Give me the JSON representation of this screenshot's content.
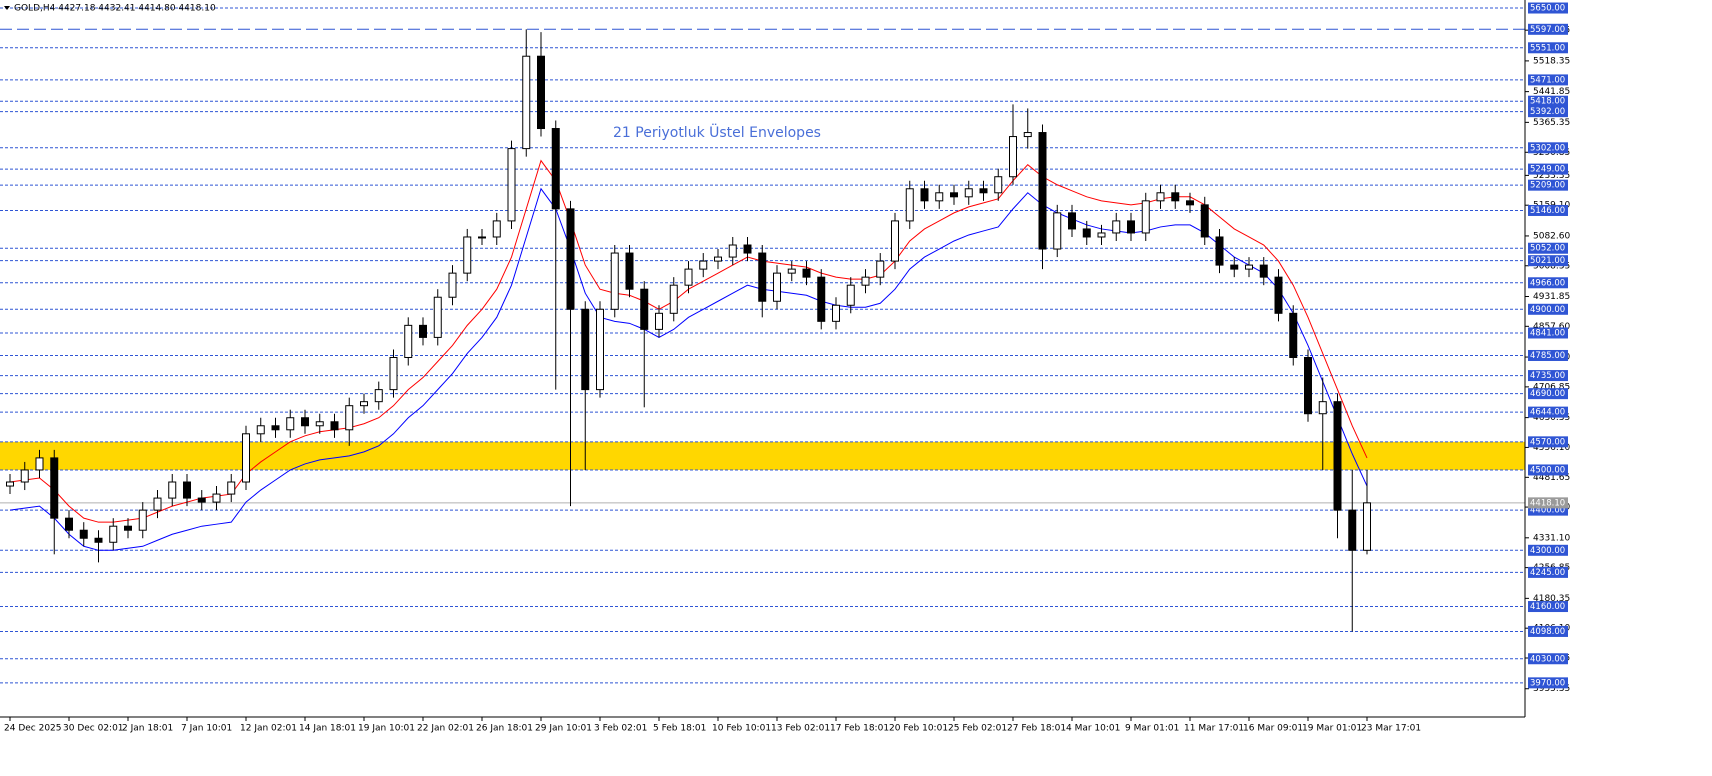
{
  "chart_data": {
    "type": "candlestick",
    "title": "GOLD,H4  4427.18 4432.41 4414.80 4418.10",
    "annotation": "21 Periyotluk Üstel Envelopes",
    "ylim": [
      3885,
      5660
    ],
    "categories": [
      "24 Dec 2025",
      null,
      null,
      null,
      "30 Dec 02:01",
      null,
      null,
      null,
      "2 Jan 18:01",
      null,
      null,
      null,
      "7 Jan 10:01",
      null,
      null,
      null,
      "12 Jan 02:01",
      null,
      null,
      null,
      "14 Jan 18:01",
      null,
      null,
      null,
      "19 Jan 10:01",
      null,
      null,
      null,
      "22 Jan 02:01",
      null,
      null,
      null,
      "26 Jan 18:01",
      null,
      null,
      null,
      "29 Jan 10:01",
      null,
      null,
      null,
      "3 Feb 02:01",
      null,
      null,
      null,
      "5 Feb 18:01",
      null,
      null,
      null,
      "10 Feb 10:01",
      null,
      null,
      null,
      "13 Feb 02:01",
      null,
      null,
      null,
      "17 Feb 18:01",
      null,
      null,
      null,
      "20 Feb 10:01",
      null,
      null,
      null,
      "25 Feb 02:01",
      null,
      null,
      null,
      "27 Feb 18:01",
      null,
      null,
      null,
      "4 Mar 10:01",
      null,
      null,
      null,
      "9 Mar 01:01",
      null,
      null,
      null,
      "11 Mar 17:01",
      null,
      null,
      null,
      "16 Mar 09:01",
      null,
      null,
      null,
      "19 Mar 01:01",
      null,
      null,
      null,
      "23 Mar 17:01"
    ],
    "open": [
      4460,
      4470,
      4500,
      4530,
      4380,
      4350,
      4330,
      4320,
      4360,
      4350,
      4400,
      4430,
      4470,
      4430,
      4420,
      4440,
      4470,
      4590,
      4610,
      4600,
      4630,
      4610,
      4620,
      4600,
      4660,
      4670,
      4700,
      4780,
      4860,
      4830,
      4930,
      4990,
      5080,
      5080,
      5120,
      5300,
      5530,
      5350,
      5150,
      4900,
      4700,
      4900,
      5040,
      4950,
      4850,
      4890,
      4960,
      5000,
      5020,
      5030,
      5060,
      5040,
      4920,
      4990,
      5000,
      4980,
      4870,
      4910,
      4960,
      4980,
      5020,
      5120,
      5200,
      5170,
      5190,
      5180,
      5200,
      5190,
      5230,
      5330,
      5340,
      5050,
      5140,
      5100,
      5080,
      5090,
      5120,
      5090,
      5170,
      5190,
      5170,
      5160,
      5080,
      5010,
      5000,
      5010,
      4980,
      4890,
      4780,
      4640,
      4670,
      4400,
      4300
    ],
    "high": [
      4490,
      4520,
      4550,
      4550,
      4400,
      4370,
      4350,
      4380,
      4380,
      4420,
      4450,
      4490,
      4490,
      4450,
      4460,
      4490,
      4610,
      4630,
      4630,
      4650,
      4650,
      4640,
      4640,
      4680,
      4690,
      4720,
      4800,
      4880,
      4880,
      4950,
      5010,
      5100,
      5100,
      5140,
      5320,
      5597,
      5590,
      5370,
      5170,
      4920,
      4920,
      5060,
      5060,
      4970,
      4910,
      4980,
      5020,
      5040,
      5050,
      5080,
      5080,
      5060,
      5010,
      5020,
      5020,
      5000,
      4930,
      4980,
      5000,
      5040,
      5140,
      5220,
      5220,
      5210,
      5210,
      5220,
      5220,
      5250,
      5410,
      5400,
      5360,
      5160,
      5160,
      5120,
      5110,
      5140,
      5140,
      5190,
      5210,
      5210,
      5190,
      5180,
      5100,
      5030,
      5030,
      5030,
      5000,
      4910,
      4800,
      4730,
      4690,
      4500,
      4500
    ],
    "low": [
      4440,
      4450,
      4480,
      4290,
      4330,
      4310,
      4270,
      4300,
      4330,
      4330,
      4380,
      4410,
      4410,
      4400,
      4400,
      4420,
      4450,
      4570,
      4580,
      4580,
      4590,
      4590,
      4580,
      4560,
      4640,
      4650,
      4680,
      4760,
      4810,
      4810,
      4910,
      4970,
      5060,
      5060,
      5100,
      5280,
      5330,
      4700,
      4410,
      4500,
      4680,
      4880,
      4930,
      4656,
      4830,
      4870,
      4940,
      4980,
      5000,
      5010,
      5020,
      4880,
      4900,
      4970,
      4960,
      4850,
      4850,
      4890,
      4940,
      4960,
      5000,
      5100,
      5150,
      5150,
      5160,
      5160,
      5170,
      5170,
      5210,
      5300,
      5000,
      5030,
      5080,
      5060,
      5060,
      5070,
      5070,
      5070,
      5150,
      5150,
      5140,
      5060,
      4990,
      4980,
      4980,
      4960,
      4870,
      4760,
      4620,
      4500,
      4330,
      4098,
      4290
    ],
    "close": [
      4470,
      4500,
      4530,
      4380,
      4350,
      4330,
      4320,
      4360,
      4350,
      4400,
      4430,
      4470,
      4430,
      4420,
      4440,
      4470,
      4590,
      4610,
      4600,
      4630,
      4610,
      4620,
      4600,
      4660,
      4670,
      4700,
      4780,
      4860,
      4830,
      4930,
      4990,
      5080,
      5080,
      5120,
      5300,
      5530,
      5350,
      5150,
      4900,
      4700,
      4900,
      5040,
      4950,
      4850,
      4890,
      4960,
      5000,
      5020,
      5030,
      5060,
      5040,
      4920,
      4990,
      5000,
      4980,
      4870,
      4910,
      4960,
      4980,
      5020,
      5120,
      5200,
      5170,
      5190,
      5180,
      5200,
      5190,
      5230,
      5330,
      5340,
      5050,
      5140,
      5100,
      5080,
      5090,
      5120,
      5090,
      5170,
      5190,
      5170,
      5160,
      5080,
      5010,
      5000,
      5010,
      4980,
      4890,
      4780,
      4640,
      4670,
      4400,
      4300,
      4418.1
    ],
    "bull_color": "#ffffff",
    "bear_color": "#000000",
    "lines": [
      {
        "color": "#ff0000",
        "values": [
          4470,
          4475,
          4480,
          4450,
          4410,
          4380,
          4370,
          4370,
          4375,
          4380,
          4395,
          4410,
          4420,
          4430,
          4435,
          4440,
          4490,
          4520,
          4545,
          4570,
          4585,
          4595,
          4600,
          4605,
          4615,
          4630,
          4660,
          4700,
          4730,
          4770,
          4810,
          4860,
          4900,
          4950,
          5030,
          5150,
          5270,
          5220,
          5120,
          5010,
          4950,
          4940,
          4935,
          4920,
          4900,
          4920,
          4950,
          4970,
          4990,
          5010,
          5030,
          5020,
          5015,
          5010,
          5005,
          4990,
          4980,
          4975,
          4975,
          4985,
          5020,
          5070,
          5100,
          5120,
          5140,
          5155,
          5165,
          5175,
          5220,
          5260,
          5230,
          5210,
          5195,
          5180,
          5170,
          5165,
          5160,
          5165,
          5175,
          5180,
          5180,
          5160,
          5130,
          5100,
          5080,
          5060,
          5020,
          4960,
          4880,
          4790,
          4700,
          4610,
          4530
        ]
      },
      {
        "color": "#0000ff",
        "values": [
          4400,
          4405,
          4410,
          4380,
          4340,
          4310,
          4300,
          4300,
          4305,
          4310,
          4325,
          4340,
          4350,
          4360,
          4365,
          4370,
          4420,
          4450,
          4475,
          4500,
          4515,
          4525,
          4530,
          4535,
          4545,
          4560,
          4590,
          4630,
          4660,
          4700,
          4740,
          4790,
          4830,
          4880,
          4960,
          5080,
          5200,
          5150,
          5050,
          4940,
          4880,
          4870,
          4865,
          4850,
          4830,
          4850,
          4880,
          4900,
          4920,
          4940,
          4960,
          4950,
          4945,
          4940,
          4935,
          4920,
          4910,
          4905,
          4905,
          4915,
          4950,
          5000,
          5030,
          5050,
          5070,
          5085,
          5095,
          5105,
          5150,
          5190,
          5160,
          5140,
          5125,
          5110,
          5100,
          5095,
          5090,
          5095,
          5105,
          5110,
          5110,
          5090,
          5060,
          5030,
          5010,
          4990,
          4950,
          4890,
          4810,
          4720,
          4630,
          4540,
          4460
        ]
      }
    ],
    "zone": [
      4500,
      4570
    ],
    "zone_color": "#ffd700",
    "level_color": "#2f55d4",
    "levels": [
      {
        "value": 5650,
        "label": "5650.00"
      },
      {
        "value": 5597,
        "label": "5597.00",
        "long_dash": true
      },
      {
        "value": 5551,
        "label": "5551.00"
      },
      {
        "value": 5471,
        "label": "5471.00"
      },
      {
        "value": 5418,
        "label": "5418.00"
      },
      {
        "value": 5392,
        "label": "5392.00"
      },
      {
        "value": 5302,
        "label": "5302.00"
      },
      {
        "value": 5249,
        "label": "5249.00"
      },
      {
        "value": 5209,
        "label": "5209.00"
      },
      {
        "value": 5146,
        "label": "5146.00"
      },
      {
        "value": 5052,
        "label": "5052.00"
      },
      {
        "value": 5021,
        "label": "5021.00"
      },
      {
        "value": 4966,
        "label": "4966.00"
      },
      {
        "value": 4900,
        "label": "4900.00"
      },
      {
        "value": 4841,
        "label": "4841.00"
      },
      {
        "value": 4785,
        "label": "4785.00"
      },
      {
        "value": 4735,
        "label": "4735.00"
      },
      {
        "value": 4690,
        "label": "4690.00"
      },
      {
        "value": 4644,
        "label": "4644.00"
      },
      {
        "value": 4570,
        "label": "4570.00"
      },
      {
        "value": 4500,
        "label": "4500.00"
      },
      {
        "value": 4400,
        "label": "4400.00"
      },
      {
        "value": 4300,
        "label": "4300.00"
      },
      {
        "value": 4245,
        "label": "4245.00"
      },
      {
        "value": 4160,
        "label": "4160.00"
      },
      {
        "value": 4098,
        "label": "4098.00"
      },
      {
        "value": 4030,
        "label": "4030.00"
      },
      {
        "value": 3970,
        "label": "3970.00"
      }
    ],
    "last": {
      "value": 4418.1,
      "label": "4418.10"
    },
    "yticks": [
      5594.85,
      5518.35,
      5441.85,
      5365.35,
      5290.85,
      5233.35,
      {
        "value": 5159.1,
        "label": "5159.10"
      },
      {
        "value": 5082.6,
        "label": "5082.60"
      },
      5008.35,
      4931.85,
      {
        "value": 4857.6,
        "label": "4857.60"
      },
      {
        "value": 4781.1,
        "label": "4781.10"
      },
      4706.85,
      4630.35,
      {
        "value": 4556.1,
        "label": "4556.10"
      },
      4481.65,
      {
        "value": 4407.6,
        "label": "4407.60"
      },
      {
        "value": 4331.1,
        "label": "4331.10"
      },
      4256.85,
      4180.35,
      {
        "value": 4106.1,
        "label": "4106.10"
      },
      4031.85,
      3955.35
    ]
  }
}
